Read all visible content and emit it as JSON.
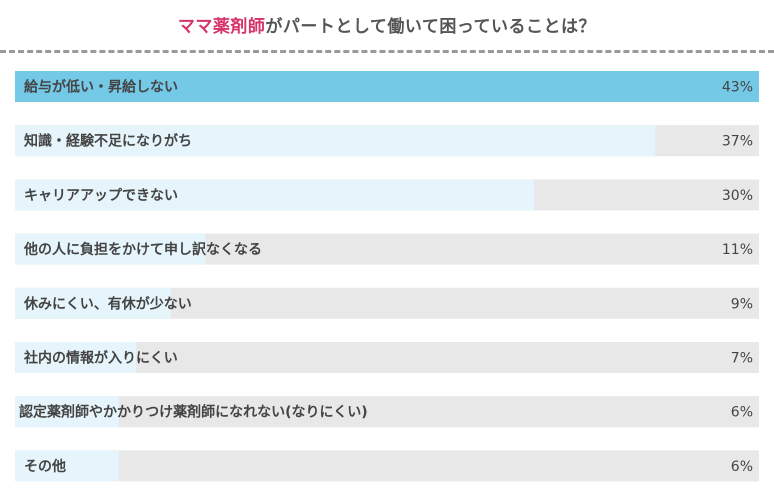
{
  "title_prefix": "ママ薬剤師",
  "title_rest": "がパートとして働いて困っていることは？",
  "colors": {
    "track": "#e8e8e8",
    "bar": "#e6f5fb",
    "bar_top": "#73c9e6",
    "title_highlight": "#d6336c",
    "text": "#444444"
  },
  "chart_data": {
    "type": "bar",
    "orientation": "horizontal",
    "categories": [
      "給与が低い・昇給しない",
      "知識・経験不足になりがち",
      "キャリアアップできない",
      "他の人に負担をかけて申し訳なくなる",
      "休みにくい、有休が少ない",
      "社内の情報が入りにくい",
      "認定薬剤師やかかりつけ薬剤師になれない(なりにくい)",
      "その他"
    ],
    "values": [
      43,
      37,
      30,
      11,
      9,
      7,
      6,
      6
    ],
    "value_labels": [
      "43%",
      "37%",
      "30%",
      "11%",
      "9%",
      "7%",
      "6%",
      "6%"
    ],
    "xlim": [
      0,
      43
    ],
    "grid": false,
    "legend": "none"
  }
}
